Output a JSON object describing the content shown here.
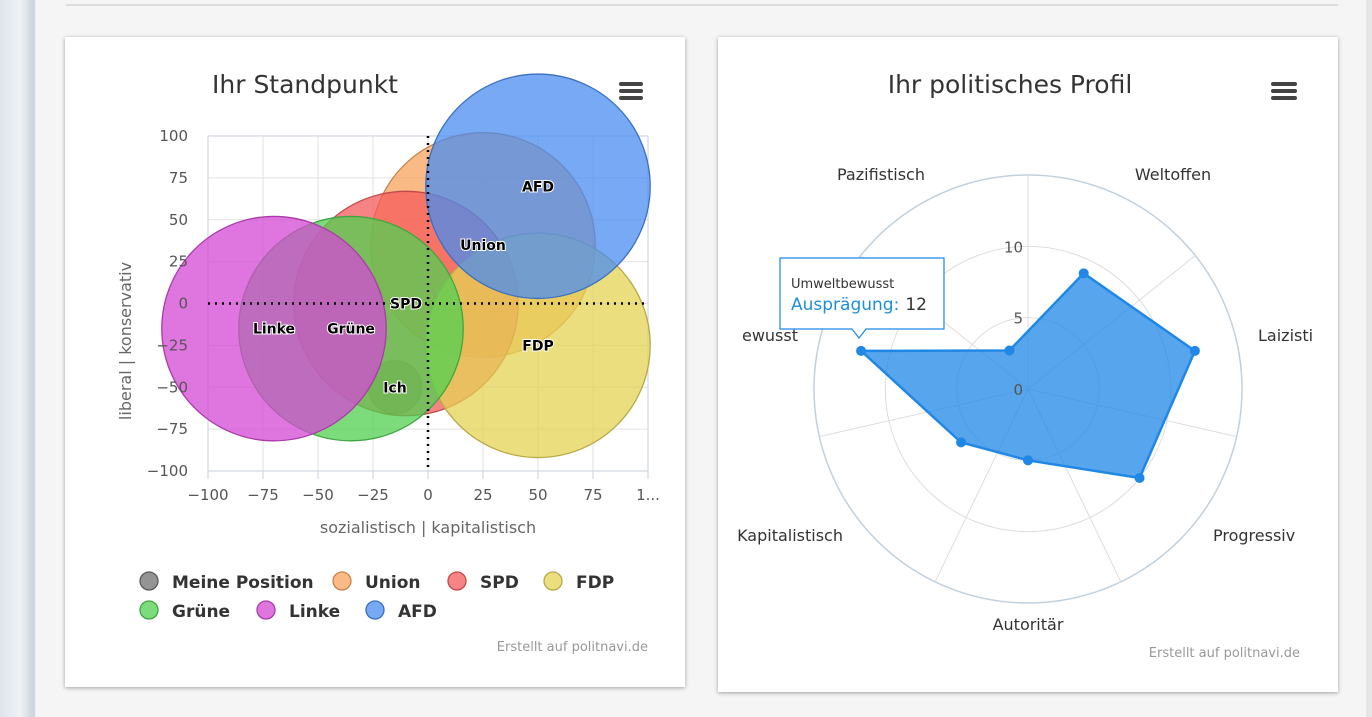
{
  "chart_data": [
    {
      "type": "bubble",
      "title": "Ihr Standpunkt",
      "xlabel": "sozialistisch | kapitalistisch",
      "ylabel": "liberal | konservativ",
      "xlim": [
        -100,
        100
      ],
      "ylim": [
        -100,
        100
      ],
      "xticks": [
        "−100",
        "−75",
        "−50",
        "−25",
        "0",
        "25",
        "50",
        "75",
        "1..."
      ],
      "yticks": [
        "100",
        "75",
        "50",
        "25",
        "0",
        "−25",
        "−50",
        "−75",
        "−100"
      ],
      "grid": true,
      "series": [
        {
          "name": "Meine Position",
          "label": "Ich",
          "x": -15,
          "y": -50,
          "radius_units": 12,
          "color": "#707070"
        },
        {
          "name": "Union",
          "label": "Union",
          "x": 25,
          "y": 35,
          "radius_units": 51,
          "color": "#f7a35c"
        },
        {
          "name": "SPD",
          "label": "SPD",
          "x": -10,
          "y": 0,
          "radius_units": 51,
          "color": "#f45b5b"
        },
        {
          "name": "FDP",
          "label": "FDP",
          "x": 50,
          "y": -25,
          "radius_units": 51,
          "color": "#e4d354"
        },
        {
          "name": "Grüne",
          "label": "Grüne",
          "x": -35,
          "y": -15,
          "radius_units": 51,
          "color": "#50d050"
        },
        {
          "name": "Linke",
          "label": "Linke",
          "x": -70,
          "y": -15,
          "radius_units": 51,
          "color": "#d448d4"
        },
        {
          "name": "AFD",
          "label": "AFD",
          "x": 50,
          "y": 70,
          "radius_units": 51,
          "color": "#4a8cf0"
        }
      ],
      "credits": "Erstellt auf politnavi.de"
    },
    {
      "type": "radar",
      "title": "Ihr politisches Profil",
      "categories": [
        "Weltoffen",
        "Laizisti",
        "Progressiv",
        "Autoritär",
        "Kapitalistisch",
        "ewusst",
        "Pazifistisch"
      ],
      "values": [
        9,
        12,
        10,
        5,
        6,
        12,
        3
      ],
      "rlim": [
        0,
        15
      ],
      "rticks": [
        "0",
        "5",
        "10"
      ],
      "color": "#1f87e5",
      "tooltip": {
        "category": "Umweltbewusst",
        "key": "Ausprägung:",
        "value": "12"
      },
      "credits": "Erstellt auf politnavi.de"
    }
  ]
}
